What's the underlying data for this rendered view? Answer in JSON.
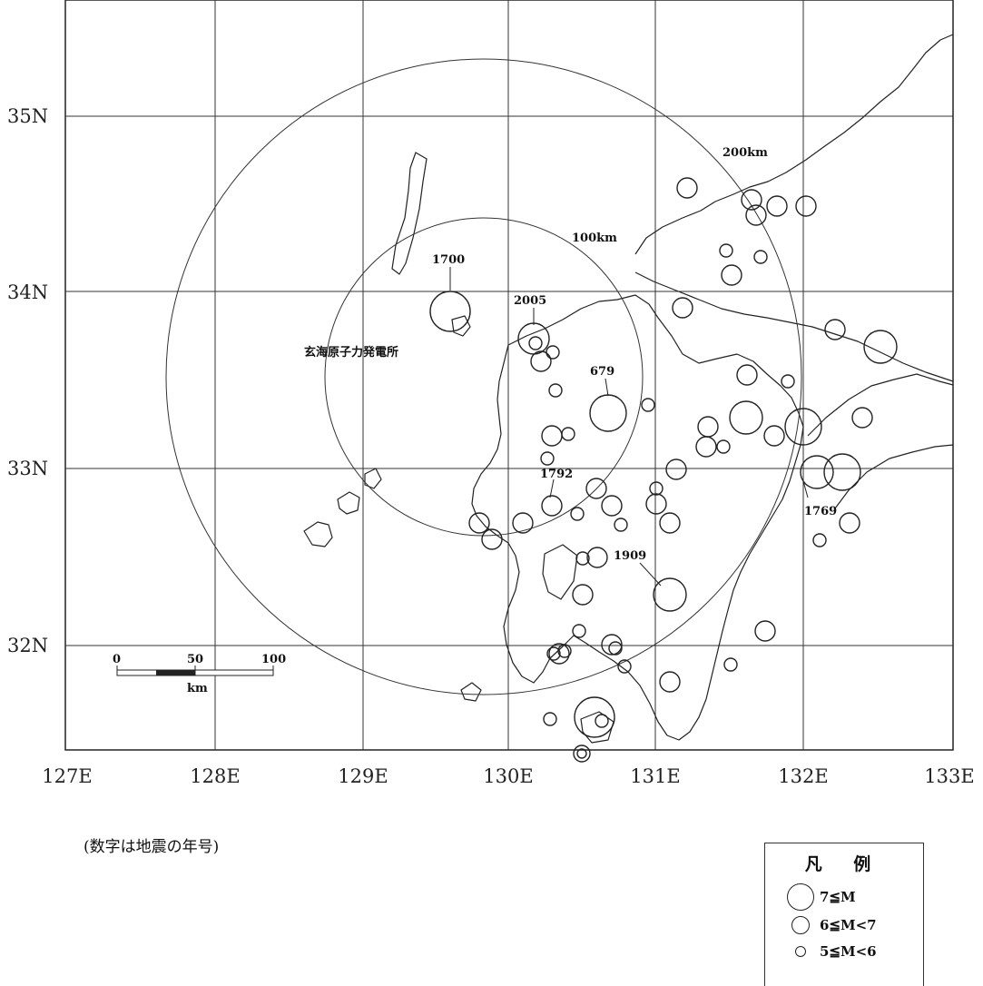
{
  "axes": {
    "lat_labels": [
      "35N",
      "34N",
      "33N",
      "32N"
    ],
    "lon_labels": [
      "127E",
      "128E",
      "129E",
      "130E",
      "131E",
      "132E",
      "133E"
    ]
  },
  "site": {
    "name": "玄海原子力発電所"
  },
  "rings": [
    {
      "label": "100km"
    },
    {
      "label": "200km"
    }
  ],
  "scale_bar": {
    "ticks": [
      "0",
      "50",
      "100"
    ],
    "unit": "km"
  },
  "year_labels": [
    "1700",
    "2005",
    "679",
    "1792",
    "1909",
    "1769"
  ],
  "note": "(数字は地震の年号)",
  "legend": {
    "title": "凡 例",
    "items": [
      {
        "label": "7≦M",
        "class": "large"
      },
      {
        "label": "6≦M<7",
        "class": "medium"
      },
      {
        "label": "5≦M<6",
        "class": "small"
      }
    ]
  },
  "colors": {
    "line": "#222222",
    "background": "#ffffff"
  }
}
